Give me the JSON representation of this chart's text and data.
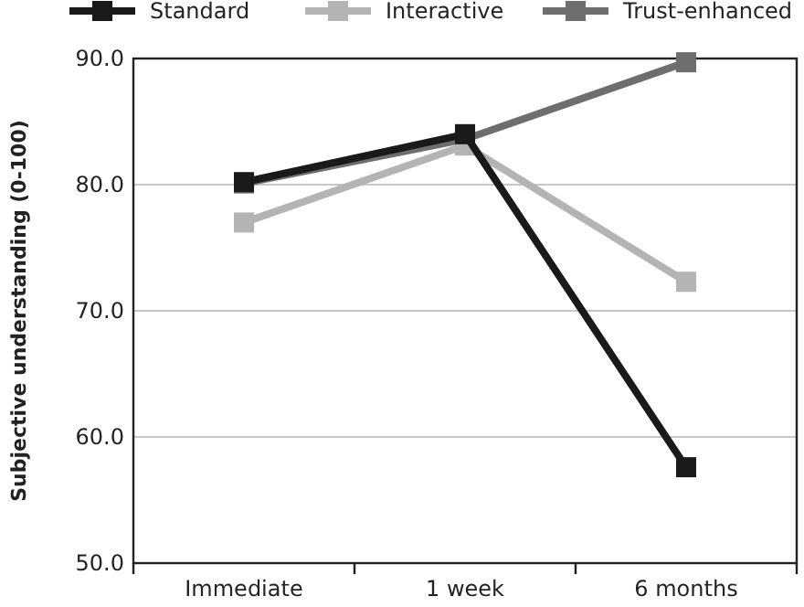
{
  "chart_data": {
    "type": "line",
    "ylabel": "Subjective understanding (0-100)",
    "categories": [
      "Immediate",
      "1 week",
      "6 months"
    ],
    "series": [
      {
        "name": "Standard",
        "color": "#1a1a1a",
        "values": [
          80.2,
          84.0,
          57.6
        ]
      },
      {
        "name": "Interactive",
        "color": "#b4b4b4",
        "values": [
          77.0,
          83.1,
          72.3
        ]
      },
      {
        "name": "Trust-enhanced",
        "color": "#6e6e6e",
        "values": [
          80.1,
          83.6,
          89.7
        ]
      }
    ],
    "ylim": [
      50,
      90
    ],
    "yticks": [
      {
        "value": 50,
        "label": "50.0"
      },
      {
        "value": 60,
        "label": "60.0"
      },
      {
        "value": 70,
        "label": "70.0"
      },
      {
        "value": 80,
        "label": "80.0"
      },
      {
        "value": 90,
        "label": "90.0"
      }
    ],
    "grid": "y",
    "legend": "top",
    "marker": "square",
    "line_style": "solid"
  }
}
